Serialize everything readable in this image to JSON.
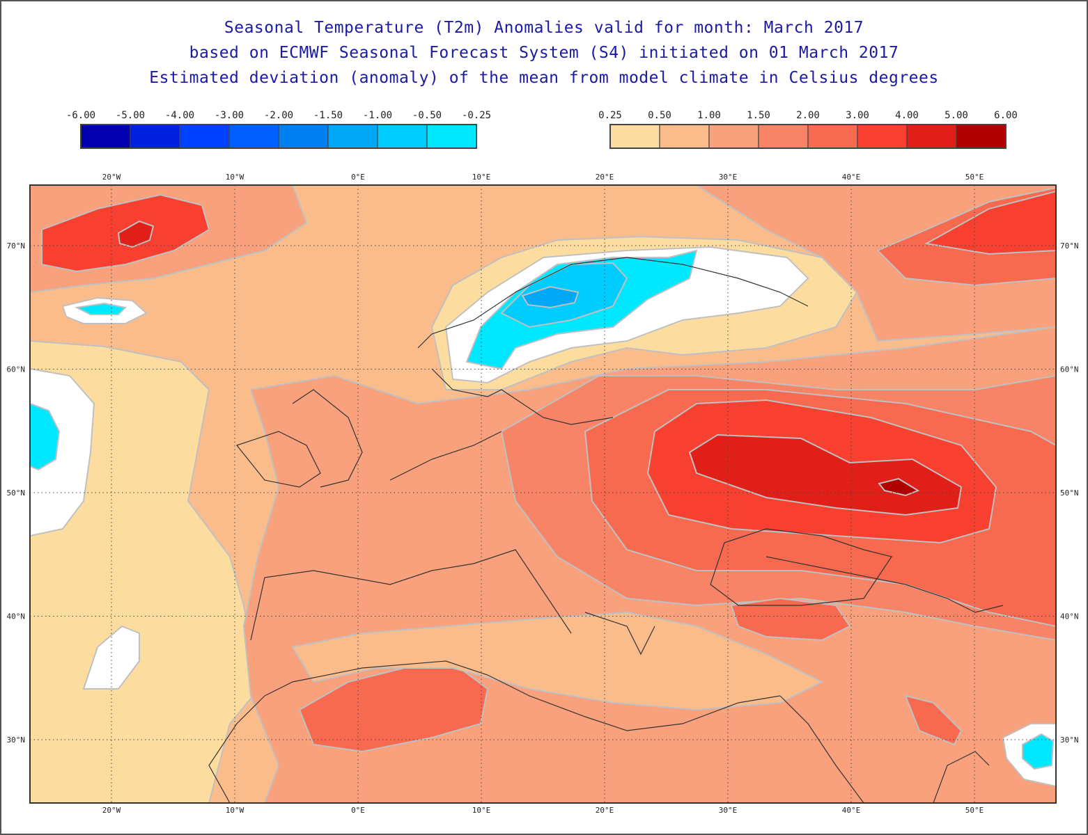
{
  "titles": {
    "line1": "Seasonal Temperature (T2m) Anomalies valid for month: March 2017",
    "line2": "based on ECMWF Seasonal Forecast System (S4) initiated on 01 March 2017",
    "line3": "Estimated deviation (anomaly) of the mean from model climate in Celsius degrees"
  },
  "legend_negative": {
    "labels": [
      "-6.00",
      "-5.00",
      "-4.00",
      "-3.00",
      "-2.00",
      "-1.50",
      "-1.00",
      "-0.50",
      "-0.25"
    ],
    "colors": [
      "#0000b0",
      "#0020e0",
      "#0040ff",
      "#0060ff",
      "#0080f0",
      "#00a8f8",
      "#00ccff",
      "#00e8ff"
    ]
  },
  "legend_positive": {
    "labels": [
      "0.25",
      "0.50",
      "1.00",
      "1.50",
      "2.00",
      "3.00",
      "4.00",
      "5.00",
      "6.00"
    ],
    "colors": [
      "#fddca0",
      "#fbbc8c",
      "#f9a07c",
      "#f88468",
      "#f86a50",
      "#f84030",
      "#e02018",
      "#b00000"
    ]
  },
  "map": {
    "lon_labels": [
      "20°W",
      "10°W",
      "0°E",
      "10°E",
      "20°E",
      "30°E",
      "40°E",
      "50°E"
    ],
    "lat_labels": [
      "70°N",
      "60°N",
      "50°N",
      "40°N",
      "30°N"
    ],
    "background_color": "#fbbc8c",
    "grid": "dotted"
  }
}
